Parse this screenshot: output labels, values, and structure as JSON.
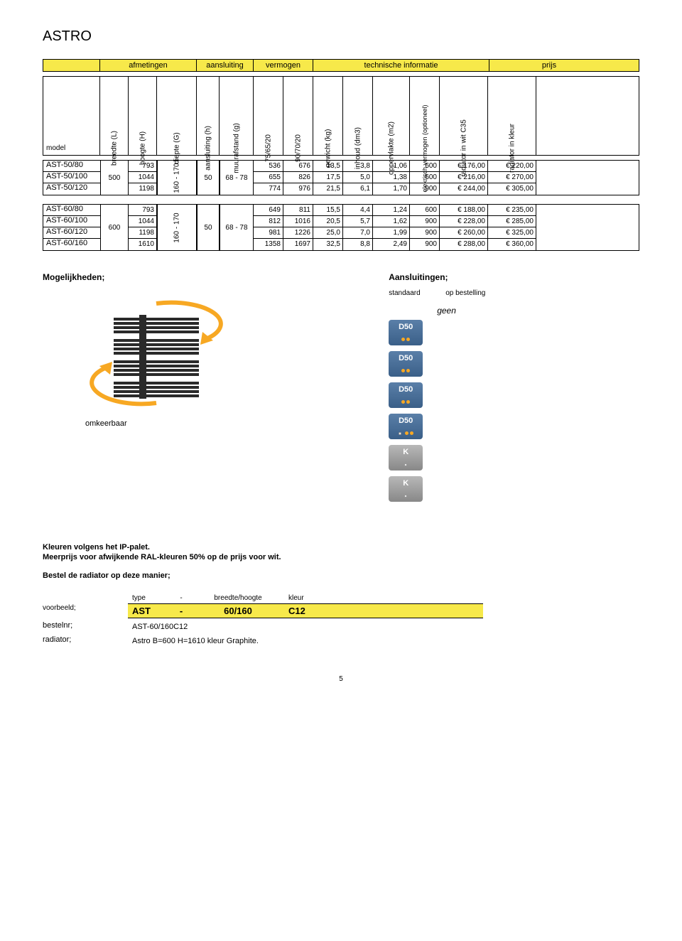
{
  "title": "ASTRO",
  "group_headers": {
    "afmetingen": "afmetingen",
    "aansluiting": "aansluiting",
    "vermogen": "vermogen",
    "technische": "technische informatie",
    "prijs": "prijs"
  },
  "col_headers": {
    "model": "model",
    "breedte": "breedte (L)",
    "hoogte": "hoogte (H)",
    "diepte": "diepte (G)",
    "aansl_h": "aansluiting (h)",
    "muur": "muurafstand (g)",
    "v75": "75/65/20",
    "v90": "90/70/20",
    "gewicht": "gewicht (kg)",
    "inhoud": "inhoud (dm3)",
    "opp": "oppervlakte (m2)",
    "elek": "elekrisch vermogen (optioneel)",
    "rad_wit": "radiator in wit C35",
    "rad_kleur": "radiator in kleur"
  },
  "table1": {
    "breedte": "500",
    "diepte": "160 - 170",
    "aansl_h": "50",
    "muur": "68 - 78",
    "rows": [
      {
        "model": "AST-50/80",
        "hoogte": "793",
        "v75": "536",
        "v90": "676",
        "gewicht": "13,5",
        "inhoud": "3,8",
        "opp": "1,06",
        "elek": "600",
        "wit": "€ 176,00",
        "kleur": "€ 220,00"
      },
      {
        "model": "AST-50/100",
        "hoogte": "1044",
        "v75": "655",
        "v90": "826",
        "gewicht": "17,5",
        "inhoud": "5,0",
        "opp": "1,38",
        "elek": "600",
        "wit": "€ 216,00",
        "kleur": "€ 270,00"
      },
      {
        "model": "AST-50/120",
        "hoogte": "1198",
        "v75": "774",
        "v90": "976",
        "gewicht": "21,5",
        "inhoud": "6,1",
        "opp": "1,70",
        "elek": "900",
        "wit": "€ 244,00",
        "kleur": "€ 305,00"
      }
    ]
  },
  "table2": {
    "breedte": "600",
    "diepte": "160 - 170",
    "aansl_h": "50",
    "muur": "68 - 78",
    "rows": [
      {
        "model": "AST-60/80",
        "hoogte": "793",
        "v75": "649",
        "v90": "811",
        "gewicht": "15,5",
        "inhoud": "4,4",
        "opp": "1,24",
        "elek": "600",
        "wit": "€ 188,00",
        "kleur": "€ 235,00"
      },
      {
        "model": "AST-60/100",
        "hoogte": "1044",
        "v75": "812",
        "v90": "1016",
        "gewicht": "20,5",
        "inhoud": "5,7",
        "opp": "1,62",
        "elek": "900",
        "wit": "€ 228,00",
        "kleur": "€ 285,00"
      },
      {
        "model": "AST-60/120",
        "hoogte": "1198",
        "v75": "981",
        "v90": "1226",
        "gewicht": "25,0",
        "inhoud": "7,0",
        "opp": "1,99",
        "elek": "900",
        "wit": "€ 260,00",
        "kleur": "€ 325,00"
      },
      {
        "model": "AST-60/160",
        "hoogte": "1610",
        "v75": "1358",
        "v90": "1697",
        "gewicht": "32,5",
        "inhoud": "8,8",
        "opp": "2,49",
        "elek": "900",
        "wit": "€ 288,00",
        "kleur": "€ 360,00"
      }
    ]
  },
  "sections": {
    "mogelijkheden": "Mogelijkheden;",
    "aansluitingen": "Aansluitingen;",
    "standaard": "standaard",
    "opbestelling": "op bestelling",
    "geen": "geen",
    "omkeerbaar": "omkeerbaar"
  },
  "badges": [
    "D50",
    "D50",
    "D50",
    "D50",
    "K",
    "K"
  ],
  "colors": {
    "highlight": "#f7e94a",
    "arrow": "#f7a823",
    "radiator": "#2a2a2a",
    "badge_blue_top": "#5a7fa8",
    "badge_blue_bot": "#3a5f88",
    "badge_gray_top": "#b8b8b8",
    "badge_gray_bot": "#888888"
  },
  "bottom": {
    "line1": "Kleuren volgens het IP-palet.",
    "line2": "Meerprijs voor afwijkende RAL-kleuren 50% op de prijs voor wit.",
    "line3": "Bestel de radiator op deze manier;",
    "order_head": {
      "type": "type",
      "dash": "-",
      "bh": "breedte/hoogte",
      "kleur": "kleur"
    },
    "voorbeeld_label": "voorbeeld;",
    "voorbeeld": {
      "type": "AST",
      "dash": "-",
      "bh": "60/160",
      "kleur": "C12"
    },
    "bestelnr_label": "bestelnr;",
    "bestelnr": "AST-60/160C12",
    "radiator_label": "radiator;",
    "radiator": "Astro B=600 H=1610 kleur Graphite."
  },
  "pagenum": "5"
}
